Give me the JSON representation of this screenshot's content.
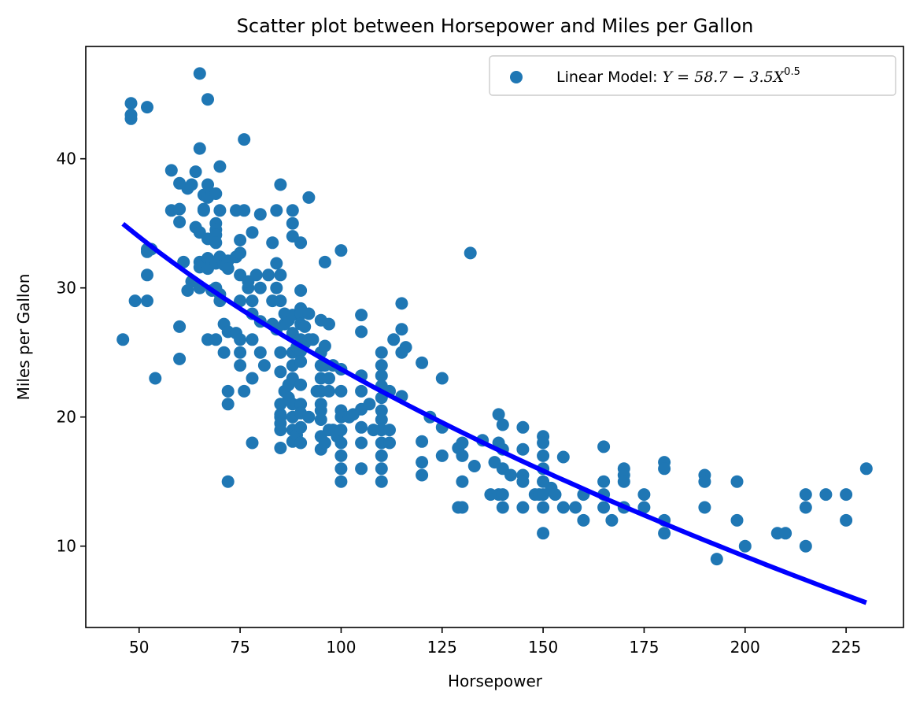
{
  "chart_data": {
    "type": "scatter",
    "title": "Scatter plot between Horsepower and Miles per Gallon",
    "xlabel": "Horsepower",
    "ylabel": "Miles per Gallon",
    "xlim": [
      36.8,
      239.2
    ],
    "ylim": [
      3.7,
      48.7
    ],
    "xticks": [
      50,
      75,
      100,
      125,
      150,
      175,
      200,
      225
    ],
    "yticks": [
      10,
      20,
      30,
      40
    ],
    "grid": false,
    "legend_position": "top-right",
    "legend": {
      "prefix": "Linear Model: ",
      "formula_main": "Y = 58.7 − 3.5X",
      "formula_exponent": "0.5"
    },
    "colors": {
      "points": "#1f77b4",
      "fit_line": "#0000ff"
    },
    "fit_line": {
      "x": [
        46,
        230
      ],
      "intercept": 58.7,
      "coefficient": -3.5,
      "power": 0.5
    },
    "series": [
      {
        "name": "Linear Model: Y = 58.7 − 3.5X^0.5",
        "points": [
          [
            46,
            26
          ],
          [
            48,
            43.1
          ],
          [
            48,
            43.4
          ],
          [
            48,
            44.3
          ],
          [
            49,
            29
          ],
          [
            52,
            44
          ],
          [
            52,
            33
          ],
          [
            52,
            32.8
          ],
          [
            52,
            31
          ],
          [
            52,
            29
          ],
          [
            54,
            23
          ],
          [
            53,
            33
          ],
          [
            58,
            39.1
          ],
          [
            58,
            36
          ],
          [
            60,
            38.1
          ],
          [
            60,
            36.1
          ],
          [
            60,
            35.1
          ],
          [
            60,
            27
          ],
          [
            60,
            24.5
          ],
          [
            61,
            32
          ],
          [
            62,
            37.7
          ],
          [
            63,
            38
          ],
          [
            62,
            29.8
          ],
          [
            63,
            30.5
          ],
          [
            64,
            34.7
          ],
          [
            64,
            39
          ],
          [
            65,
            40.8
          ],
          [
            65,
            46.6
          ],
          [
            65,
            34.3
          ],
          [
            65,
            32
          ],
          [
            65,
            31.6
          ],
          [
            65,
            30
          ],
          [
            66,
            37.2
          ],
          [
            66,
            36.1
          ],
          [
            66,
            36
          ],
          [
            67,
            38
          ],
          [
            67,
            37
          ],
          [
            67,
            33.8
          ],
          [
            67,
            32.3
          ],
          [
            67,
            31.5
          ],
          [
            67,
            44.6
          ],
          [
            67,
            26
          ],
          [
            68,
            37.3
          ],
          [
            68,
            32
          ],
          [
            68,
            29.8
          ],
          [
            69,
            37.3
          ],
          [
            69,
            35
          ],
          [
            69,
            34.5
          ],
          [
            69,
            34.1
          ],
          [
            69,
            33.5
          ],
          [
            69,
            31.9
          ],
          [
            69,
            30
          ],
          [
            69,
            26
          ],
          [
            70,
            39.4
          ],
          [
            70,
            36
          ],
          [
            70,
            32.4
          ],
          [
            70,
            29.5
          ],
          [
            70,
            29
          ],
          [
            71,
            31.8
          ],
          [
            71,
            27.2
          ],
          [
            71,
            25
          ],
          [
            72,
            32.1
          ],
          [
            72,
            31.5
          ],
          [
            72,
            26.6
          ],
          [
            72,
            22
          ],
          [
            72,
            21
          ],
          [
            72,
            15
          ],
          [
            74,
            36
          ],
          [
            74,
            32.4
          ],
          [
            74,
            26.5
          ],
          [
            75,
            33.7
          ],
          [
            75,
            32.7
          ],
          [
            75,
            31
          ],
          [
            75,
            29
          ],
          [
            75,
            26
          ],
          [
            75,
            24
          ],
          [
            75,
            25
          ],
          [
            76,
            36
          ],
          [
            76,
            41.5
          ],
          [
            76,
            22
          ],
          [
            77,
            30
          ],
          [
            77,
            30.5
          ],
          [
            78,
            34.3
          ],
          [
            78,
            29
          ],
          [
            78,
            28
          ],
          [
            78,
            26
          ],
          [
            78,
            23
          ],
          [
            78,
            18
          ],
          [
            79,
            31
          ],
          [
            80,
            35.7
          ],
          [
            80,
            30
          ],
          [
            80,
            27.4
          ],
          [
            80,
            25
          ],
          [
            81,
            24
          ],
          [
            82,
            31
          ],
          [
            83,
            33.5
          ],
          [
            83,
            29
          ],
          [
            83,
            27.2
          ],
          [
            84,
            36
          ],
          [
            84,
            31.9
          ],
          [
            84,
            30
          ],
          [
            84,
            26.8
          ],
          [
            85,
            38
          ],
          [
            85,
            31
          ],
          [
            85,
            29
          ],
          [
            85,
            25
          ],
          [
            85,
            23.5
          ],
          [
            85,
            21
          ],
          [
            85,
            20.2
          ],
          [
            85,
            20
          ],
          [
            85,
            19.5
          ],
          [
            85,
            19
          ],
          [
            85,
            17.6
          ],
          [
            86,
            28
          ],
          [
            86,
            22
          ],
          [
            86,
            27.2
          ],
          [
            87,
            27.5
          ],
          [
            87,
            22.5
          ],
          [
            87,
            21.5
          ],
          [
            88,
            36
          ],
          [
            88,
            35
          ],
          [
            88,
            34
          ],
          [
            88,
            27.9
          ],
          [
            88,
            26.5
          ],
          [
            88,
            25
          ],
          [
            88,
            24
          ],
          [
            88,
            23
          ],
          [
            88,
            21
          ],
          [
            88,
            20
          ],
          [
            88,
            19
          ],
          [
            88,
            18.1
          ],
          [
            89,
            25.4
          ],
          [
            89,
            18.6
          ],
          [
            90,
            33.5
          ],
          [
            90,
            29.8
          ],
          [
            90,
            28.4
          ],
          [
            90,
            28
          ],
          [
            90,
            27.2
          ],
          [
            90,
            26
          ],
          [
            90,
            25.1
          ],
          [
            90,
            24.3
          ],
          [
            90,
            22.5
          ],
          [
            90,
            21
          ],
          [
            90,
            20.3
          ],
          [
            90,
            19.2
          ],
          [
            90,
            18
          ],
          [
            91,
            27
          ],
          [
            91,
            25.7
          ],
          [
            92,
            37
          ],
          [
            92,
            28
          ],
          [
            92,
            26
          ],
          [
            92,
            20
          ],
          [
            93,
            26
          ],
          [
            94,
            22
          ],
          [
            95,
            27.5
          ],
          [
            95,
            25
          ],
          [
            95,
            24
          ],
          [
            95,
            23
          ],
          [
            95,
            22
          ],
          [
            95,
            21
          ],
          [
            95,
            20.5
          ],
          [
            95,
            19.8
          ],
          [
            95,
            18.5
          ],
          [
            95,
            17.5
          ],
          [
            96,
            32
          ],
          [
            96,
            25.5
          ],
          [
            96,
            24
          ],
          [
            96,
            18
          ],
          [
            97,
            27.2
          ],
          [
            97,
            23
          ],
          [
            97,
            22
          ],
          [
            97,
            19
          ],
          [
            98,
            24
          ],
          [
            98,
            19
          ],
          [
            99,
            18.5
          ],
          [
            100,
            32.9
          ],
          [
            100,
            23.7
          ],
          [
            100,
            22
          ],
          [
            100,
            20.5
          ],
          [
            100,
            20
          ],
          [
            100,
            19
          ],
          [
            100,
            18
          ],
          [
            100,
            17
          ],
          [
            100,
            16
          ],
          [
            100,
            15
          ],
          [
            102,
            20
          ],
          [
            103,
            20.2
          ],
          [
            105,
            27.9
          ],
          [
            105,
            26.6
          ],
          [
            105,
            23.2
          ],
          [
            105,
            22
          ],
          [
            105,
            20.6
          ],
          [
            105,
            19.2
          ],
          [
            105,
            18
          ],
          [
            105,
            16
          ],
          [
            107,
            21
          ],
          [
            108,
            19
          ],
          [
            110,
            25
          ],
          [
            110,
            24
          ],
          [
            110,
            23.2
          ],
          [
            110,
            22.4
          ],
          [
            110,
            21.5
          ],
          [
            110,
            20.5
          ],
          [
            110,
            19.8
          ],
          [
            110,
            19
          ],
          [
            110,
            18
          ],
          [
            110,
            17
          ],
          [
            110,
            16
          ],
          [
            110,
            15
          ],
          [
            112,
            22
          ],
          [
            112,
            19
          ],
          [
            112,
            18
          ],
          [
            113,
            26
          ],
          [
            115,
            28.8
          ],
          [
            115,
            26.8
          ],
          [
            115,
            25
          ],
          [
            115,
            21.6
          ],
          [
            116,
            25.4
          ],
          [
            120,
            24.2
          ],
          [
            120,
            18.1
          ],
          [
            120,
            16.5
          ],
          [
            120,
            15.5
          ],
          [
            122,
            20
          ],
          [
            125,
            23
          ],
          [
            125,
            19.2
          ],
          [
            125,
            17
          ],
          [
            129,
            17.6
          ],
          [
            129,
            13
          ],
          [
            130,
            18
          ],
          [
            130,
            17
          ],
          [
            130,
            15
          ],
          [
            130,
            13
          ],
          [
            132,
            32.7
          ],
          [
            133,
            16.2
          ],
          [
            135,
            18.2
          ],
          [
            137,
            14
          ],
          [
            138,
            16.5
          ],
          [
            139,
            20.2
          ],
          [
            139,
            18
          ],
          [
            139,
            14
          ],
          [
            140,
            19.4
          ],
          [
            140,
            17.5
          ],
          [
            140,
            16
          ],
          [
            140,
            14
          ],
          [
            140,
            13
          ],
          [
            142,
            15.5
          ],
          [
            145,
            19.2
          ],
          [
            145,
            17.5
          ],
          [
            145,
            15.5
          ],
          [
            145,
            15
          ],
          [
            145,
            13
          ],
          [
            148,
            14
          ],
          [
            149,
            14
          ],
          [
            150,
            18.5
          ],
          [
            150,
            18
          ],
          [
            150,
            17
          ],
          [
            150,
            16
          ],
          [
            150,
            15
          ],
          [
            150,
            14
          ],
          [
            150,
            13
          ],
          [
            150,
            11
          ],
          [
            152,
            14.5
          ],
          [
            153,
            14
          ],
          [
            155,
            16.9
          ],
          [
            155,
            13
          ],
          [
            158,
            13
          ],
          [
            160,
            14
          ],
          [
            160,
            12
          ],
          [
            165,
            17.7
          ],
          [
            165,
            15
          ],
          [
            165,
            14
          ],
          [
            165,
            13
          ],
          [
            167,
            12
          ],
          [
            170,
            16
          ],
          [
            170,
            15.5
          ],
          [
            170,
            15
          ],
          [
            170,
            13
          ],
          [
            175,
            14
          ],
          [
            175,
            13
          ],
          [
            180,
            16.5
          ],
          [
            180,
            16
          ],
          [
            180,
            12
          ],
          [
            180,
            11
          ],
          [
            190,
            15.5
          ],
          [
            190,
            15
          ],
          [
            190,
            13
          ],
          [
            193,
            9
          ],
          [
            198,
            15
          ],
          [
            198,
            12
          ],
          [
            200,
            10
          ],
          [
            208,
            11
          ],
          [
            210,
            11
          ],
          [
            215,
            14
          ],
          [
            215,
            13
          ],
          [
            215,
            10
          ],
          [
            220,
            14
          ],
          [
            225,
            14
          ],
          [
            225,
            12
          ],
          [
            230,
            16
          ]
        ]
      }
    ]
  }
}
